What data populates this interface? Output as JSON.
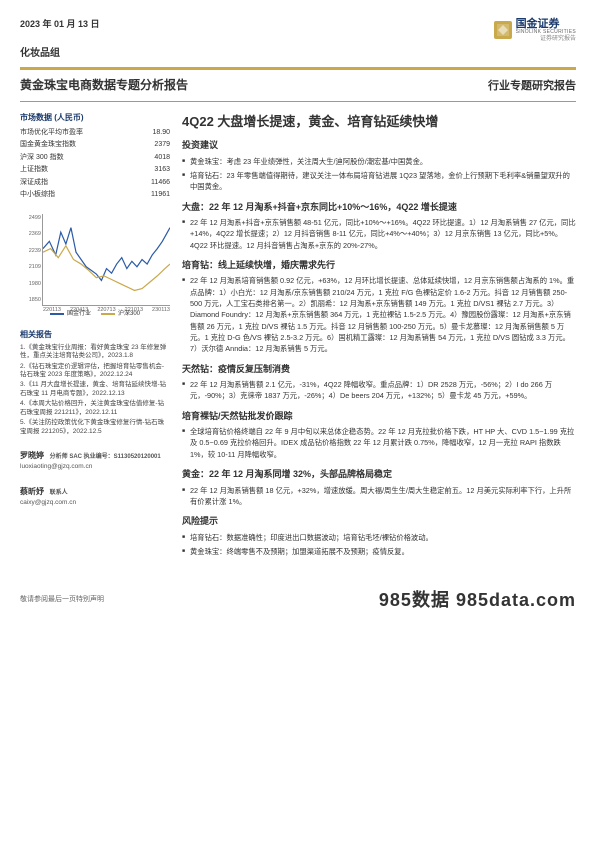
{
  "header": {
    "date": "2023 年 01 月 13 日",
    "logo_cn": "国金证券",
    "logo_en": "SINOLINK SECURITIES",
    "logo_sub": "证券研究报告",
    "category": "化妆品组",
    "title_left": "黄金珠宝电商数据专题分析报告",
    "title_right": "行业专题研究报告"
  },
  "market_data": {
    "title": "市场数据 (人民币)",
    "rows": [
      {
        "label": "市场优化平均市盈率",
        "value": "18.90"
      },
      {
        "label": "国金黄金珠宝指数",
        "value": "2379"
      },
      {
        "label": "沪深 300 指数",
        "value": "4018"
      },
      {
        "label": "上证指数",
        "value": "3163"
      },
      {
        "label": "深证成指",
        "value": "11466"
      },
      {
        "label": "中小板综指",
        "value": "11961"
      }
    ]
  },
  "chart": {
    "type": "line",
    "ylim": [
      1850,
      2499
    ],
    "yticks": [
      "2499",
      "2369",
      "2239",
      "2109",
      "1980",
      "1850"
    ],
    "xticks": [
      "220113",
      "220413",
      "220713",
      "221013",
      "230113"
    ],
    "series": [
      {
        "name": "国金行业",
        "color": "#2a5aa8",
        "points": [
          [
            0,
            38
          ],
          [
            5,
            30
          ],
          [
            10,
            45
          ],
          [
            14,
            20
          ],
          [
            18,
            33
          ],
          [
            22,
            15
          ],
          [
            26,
            42
          ],
          [
            30,
            50
          ],
          [
            34,
            58
          ],
          [
            38,
            62
          ],
          [
            42,
            66
          ],
          [
            46,
            73
          ],
          [
            50,
            60
          ],
          [
            54,
            65
          ],
          [
            58,
            55
          ],
          [
            62,
            48
          ],
          [
            66,
            60
          ],
          [
            70,
            52
          ],
          [
            74,
            58
          ],
          [
            78,
            50
          ],
          [
            82,
            55
          ],
          [
            86,
            45
          ],
          [
            90,
            38
          ],
          [
            94,
            30
          ],
          [
            98,
            20
          ],
          [
            100,
            15
          ]
        ]
      },
      {
        "name": "沪深300",
        "color": "#c9a94b",
        "points": [
          [
            0,
            42
          ],
          [
            6,
            38
          ],
          [
            12,
            48
          ],
          [
            18,
            35
          ],
          [
            24,
            50
          ],
          [
            30,
            55
          ],
          [
            36,
            62
          ],
          [
            42,
            70
          ],
          [
            48,
            68
          ],
          [
            54,
            72
          ],
          [
            60,
            76
          ],
          [
            66,
            80
          ],
          [
            72,
            84
          ],
          [
            78,
            82
          ],
          [
            84,
            75
          ],
          [
            90,
            68
          ],
          [
            96,
            60
          ],
          [
            100,
            55
          ]
        ]
      }
    ],
    "legend": [
      "国金行业",
      "沪深300"
    ],
    "background_color": "#ffffff",
    "grid_color": "#e0e0e0"
  },
  "related": {
    "title": "相关报告",
    "items": [
      "1.《黄金珠宝行业周报：看好黄金珠宝 23 年修复弹性，重点关注培育钻类公司》，2023.1.8",
      "2.《钻石珠宝定价逻辑评估，把握培育钻零售机会-钻石珠宝 2023 年度策略》，2022.12.24",
      "3.《11 月大盘增长提速，黄金、培育钻延续快增-钻石珠宝 11 月电商专题》，2022.12.13",
      "4.《本周大钻价格回升，关注黄金珠宝估值修复-钻石珠宝周报 221211》，2022.12.11",
      "5.《关注防控政策优化下黄金珠宝修复行情-钻石珠宝周报 221205》，2022.12.5"
    ]
  },
  "analysts": [
    {
      "name": "罗晓婷",
      "title": "分析师 SAC 执业编号：S1130520120001",
      "email": "luoxiaoting@gjzq.com.cn"
    },
    {
      "name": "蔡昕妤",
      "title": "联系人",
      "email": "caixy@gjzq.com.cn"
    }
  ],
  "right": {
    "main_title": "4Q22 大盘增长提速，黄金、培育钻延续快增",
    "sections": [
      {
        "head": "投资建议",
        "bullets": [
          "黄金珠宝：考虑 23 年业绩弹性，关注周大生/迪阿股份/潮宏基/中国黄金。",
          "培育钻石：23 年零售端值得期待，建议关注一体布局培育钻进展 1Q23 望落地，金价上行预期下毛利率&销量望双升的中国黄金。"
        ]
      },
      {
        "head": "大盘：22 年 12 月淘系+抖音+京东同比+10%～16%，4Q22 增长提速",
        "bullets": [
          "22 年 12 月淘系+抖音+京东销售额 48-51 亿元，同比+10%～+16%。4Q22 环比提速。1）12 月淘系销售 27 亿元，同比+14%，4Q22 增长提速；2）12 月抖音销售 8-11 亿元，同比+4%～+40%；3）12 月京东销售 13 亿元，同比+5%。4Q22 环比提速。12 月抖音销售占淘系+京东的 20%-27%。"
        ]
      },
      {
        "head": "培育钻：线上延续快增，婚庆需求先行",
        "bullets": [
          "22 年 12 月淘系培育销售额 0.92 亿元，+63%，12 月环比增长提速、总体延续快增，12 月京东销售额占淘系的 1%。重点品牌：1）小白光：12 月淘系/京东销售额 210/24 万元，1 克拉 F/G 色裸钻定价 1.6-2 万元。抖音 12 月销售额 250-500 万元，人工宝石类排名第一。2）凯丽希：12 月淘系+京东销售额 149 万元。1 克拉 D/VS1 裸钻 2.7 万元。3）Diamond Foundry：12 月淘系+京东销售额 364 万元，1 克拉裸钻 1.5-2.5 万元。4）豫园股份露璨：12 月淘系+京东销售额 26 万元，1 克拉 D/VS 裸钻 1.5 万元。抖音 12 月销售额 100-250 万元。5）曼卡龙慕璨：12 月淘系销售额 5 万元。1 克拉 D-G 色/VS 裸钻 2.5-3.2 万元。6）国机精工露璨：12 月淘系销售 54 万元，1 克拉 D/VS 圆钻成 3.3 万元。7）沃尔德 Anndia：12 月淘系销售 5 万元。"
        ]
      },
      {
        "head": "天然钻：疫情反复压制消费",
        "bullets": [
          "22 年 12 月淘系销售额 2.1 亿元，-31%，4Q22 降幅收窄。重点品牌：1）DR 2528 万元，-56%；2）I do 266 万元，-90%；3）克徕帝 1837 万元，-26%；4）De beers 204 万元，+132%；5）曼卡龙 45 万元，+59%。"
        ]
      },
      {
        "head": "培育裸钻/天然钻批发价跟踪",
        "bullets": [
          "全球培育钻价格终端自 22 年 9 月中旬以来总体企稳态势。22 年 12 月克拉批价格下跌，HT HP 大、CVD 1.5~1.99 克拉及 0.5~0.69 克拉价格回升。IDEX 成品钻价格指数 22 年 12 月累计跌 0.75%，降幅收窄，12 月一克拉 RAPI 指数跌 1%，较 10-11 月降幅收窄。"
        ]
      },
      {
        "head": "黄金：22 年 12 月淘系同增 32%，头部品牌格局稳定",
        "bullets": [
          "22 年 12 月淘系销售额 18 亿元，+32%，增速放缓。周大福/周生生/周大生稳定前五。12 月美元实际利率下行，上升所有价累计涨 1%。"
        ]
      },
      {
        "head": "风险提示",
        "bullets": [
          "培育钻石：数据准确性；印度进出口数据波动；培育钻毛坯/裸钻价格波动。",
          "黄金珠宝：终端零售不及预期；加盟渠道拓展不及预期；疫情反复。"
        ]
      }
    ]
  },
  "footer": {
    "left": "敬请参阅最后一页特别声明",
    "right": "985数据 985data.com"
  },
  "colors": {
    "gold": "#c9a94b",
    "navy": "#1a3a6b",
    "line_blue": "#2a5aa8",
    "line_gold": "#c9a94b",
    "text": "#333333",
    "bg": "#ffffff"
  }
}
